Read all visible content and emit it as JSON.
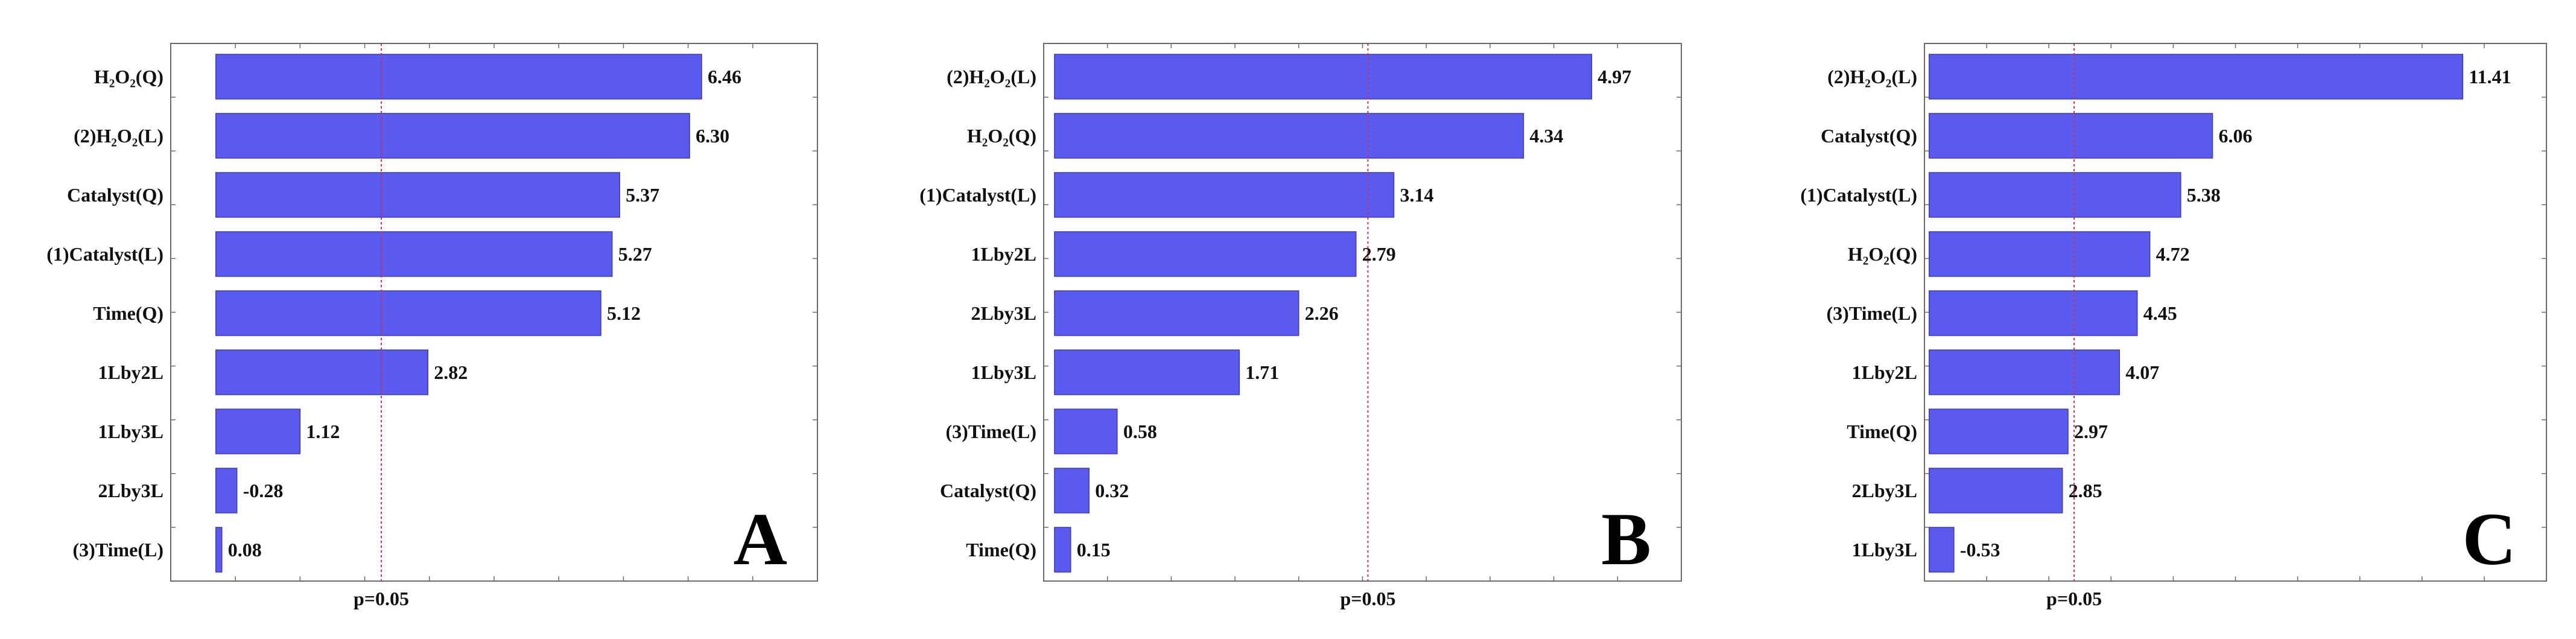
{
  "colors": {
    "bar": "#5a5af0",
    "bar_edge": "#3a3ac0",
    "ref_line": "#cc3344"
  },
  "chart_data": [
    {
      "type": "bar",
      "orientation": "horizontal",
      "panel_label": "A",
      "categories": [
        "H₂O₂(Q)",
        "(2)H₂O₂(L)",
        "Catalyst(Q)",
        "(1)Catalyst(L)",
        "Time(Q)",
        "1Lby2L",
        "1Lby3L",
        "2Lby3L",
        "(3)Time(L)"
      ],
      "value_labels": [
        "6.46",
        "6.30",
        "5.37",
        "5.27",
        "5.12",
        "2.82",
        "1.12",
        "-0.28",
        "0.08"
      ],
      "bar_lengths": [
        6.46,
        6.3,
        5.37,
        5.27,
        5.12,
        2.82,
        1.12,
        0.28,
        0.08
      ],
      "reference_line": {
        "value": 2.2,
        "label": "p=0.05"
      },
      "xlim": [
        -0.6,
        8.0
      ]
    },
    {
      "type": "bar",
      "orientation": "horizontal",
      "panel_label": "B",
      "categories": [
        "(2)H₂O₂(L)",
        "H₂O₂(Q)",
        "(1)Catalyst(L)",
        "1Lby2L",
        "2Lby3L",
        "1Lby3L",
        "(3)Time(L)",
        "Catalyst(Q)",
        "Time(Q)"
      ],
      "value_labels": [
        "4.97",
        "4.34",
        "3.14",
        "2.79",
        "2.26",
        "1.71",
        "0.58",
        "0.32",
        "0.15"
      ],
      "bar_lengths": [
        4.97,
        4.34,
        3.14,
        2.79,
        2.26,
        1.71,
        0.58,
        0.32,
        0.15
      ],
      "reference_line": {
        "value": 2.9,
        "label": "p=0.05"
      },
      "xlim": [
        -0.1,
        5.8
      ]
    },
    {
      "type": "bar",
      "orientation": "horizontal",
      "panel_label": "C",
      "categories": [
        "(2)H₂O₂(L)",
        "Catalyst(Q)",
        "(1)Catalyst(L)",
        "H₂O₂(Q)",
        "(3)Time(L)",
        "1Lby2L",
        "Time(Q)",
        "2Lby3L",
        "1Lby3L"
      ],
      "value_labels": [
        "11.41",
        "6.06",
        "5.38",
        "4.72",
        "4.45",
        "4.07",
        "2.97",
        "2.85",
        "-0.53"
      ],
      "bar_lengths": [
        11.41,
        6.06,
        5.38,
        4.72,
        4.45,
        4.07,
        2.97,
        2.85,
        0.53
      ],
      "reference_line": {
        "value": 3.1,
        "label": "p=0.05"
      },
      "xlim": [
        -0.1,
        13.2
      ]
    }
  ]
}
